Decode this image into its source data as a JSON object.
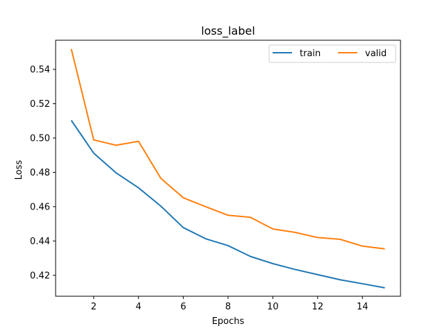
{
  "chart_data": {
    "type": "line",
    "title": "loss_label",
    "xlabel": "Epochs",
    "ylabel": "Loss",
    "xlim": [
      0.3,
      15.7
    ],
    "ylim": [
      0.4078,
      0.557
    ],
    "xticks": [
      2,
      4,
      6,
      8,
      10,
      12,
      14
    ],
    "xtick_labels": [
      "2",
      "4",
      "6",
      "8",
      "10",
      "12",
      "14"
    ],
    "yticks": [
      0.42,
      0.44,
      0.46,
      0.48,
      0.5,
      0.52,
      0.54
    ],
    "ytick_labels": [
      "0.42",
      "0.44",
      "0.46",
      "0.48",
      "0.50",
      "0.52",
      "0.54"
    ],
    "grid": false,
    "legend_position": "top-right",
    "legend_columns": 2,
    "x": [
      1,
      2,
      3,
      4,
      5,
      6,
      7,
      8,
      9,
      10,
      11,
      12,
      13,
      14,
      15
    ],
    "series": [
      {
        "name": "train",
        "color": "#1f77b4",
        "values": [
          0.5103,
          0.4912,
          0.4797,
          0.471,
          0.4603,
          0.4478,
          0.4413,
          0.4373,
          0.431,
          0.4268,
          0.4234,
          0.4204,
          0.4174,
          0.4151,
          0.4127
        ]
      },
      {
        "name": "valid",
        "color": "#ff7f0e",
        "values": [
          0.5519,
          0.4989,
          0.4958,
          0.4981,
          0.4765,
          0.4652,
          0.46,
          0.455,
          0.4538,
          0.447,
          0.445,
          0.442,
          0.441,
          0.437,
          0.4354
        ]
      }
    ]
  }
}
